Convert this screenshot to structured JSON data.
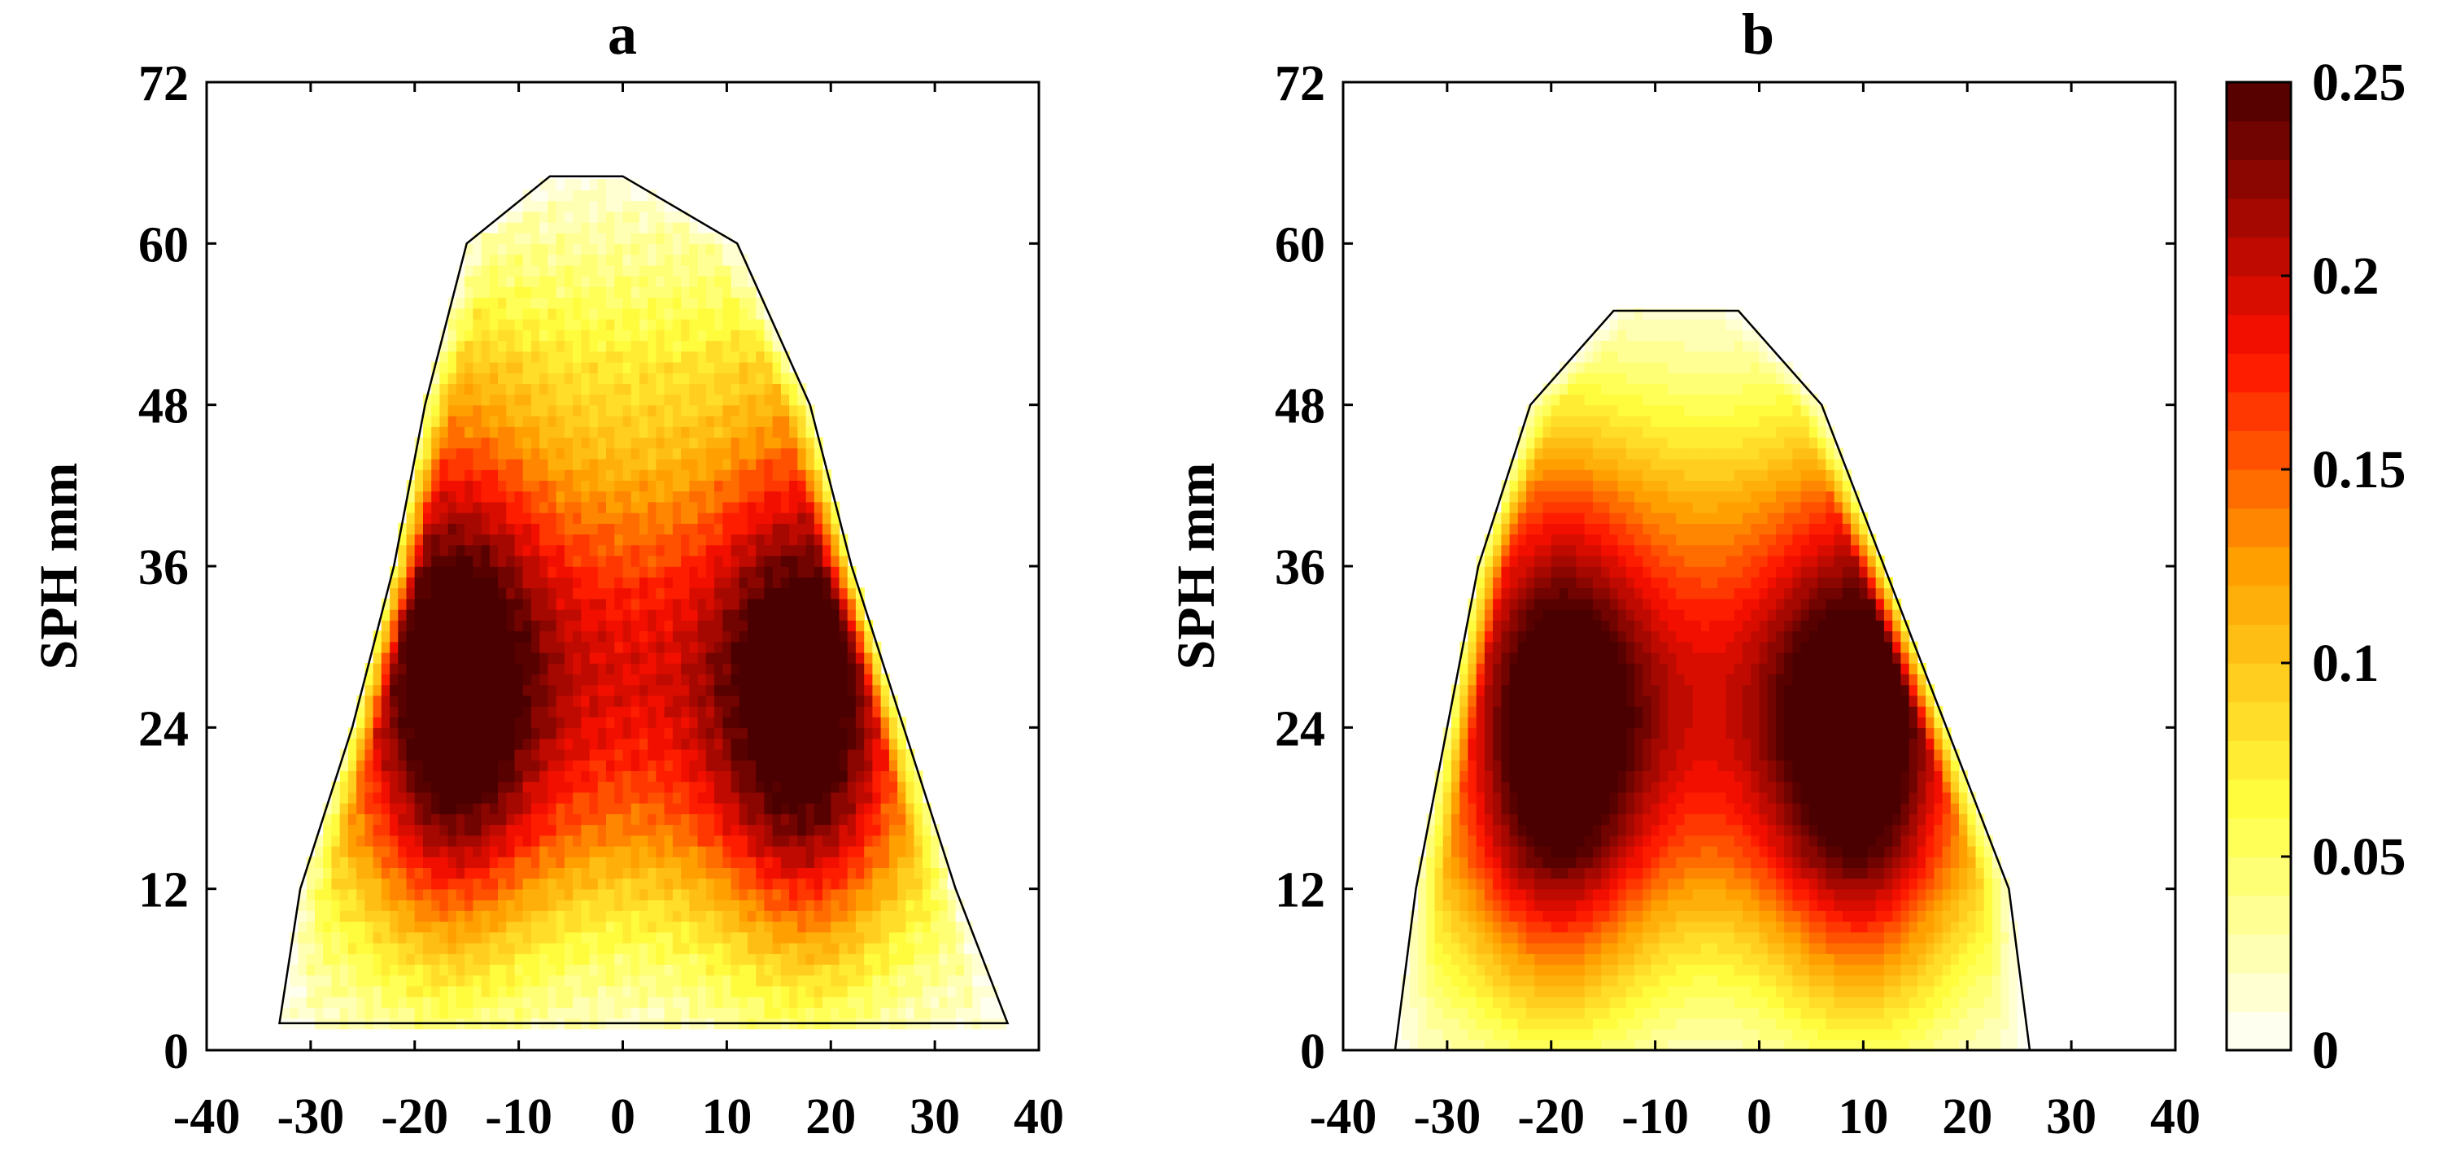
{
  "chart_data": [
    {
      "type": "heatmap",
      "title": "a",
      "xlabel": "",
      "ylabel": "SPH mm",
      "xlim": [
        -40,
        40
      ],
      "ylim": [
        0,
        72
      ],
      "xticks": [
        -40,
        -30,
        -20,
        -10,
        0,
        10,
        20,
        30,
        40
      ],
      "xtick_labels": [
        "-40",
        "-30",
        "-20",
        "-10",
        "0",
        "10",
        "20",
        "30",
        "40"
      ],
      "yticks": [
        0,
        12,
        24,
        36,
        48,
        60,
        72
      ],
      "ytick_labels": [
        "0",
        "12",
        "24",
        "36",
        "48",
        "60",
        "72"
      ],
      "grid": false,
      "description_values": {
        "outline_rows": [
          {
            "y": 2,
            "x_left": -33,
            "x_right": 37
          },
          {
            "y": 12,
            "x_left": -31,
            "x_right": 32
          },
          {
            "y": 24,
            "x_left": -26,
            "x_right": 27
          },
          {
            "y": 36,
            "x_left": -22,
            "x_right": 22
          },
          {
            "y": 48,
            "x_left": -19,
            "x_right": 18
          },
          {
            "y": 60,
            "x_left": -15,
            "x_right": 11
          },
          {
            "y": 65,
            "x_left": -7,
            "x_right": 0
          }
        ],
        "peaks": [
          {
            "x": -17,
            "y": 27,
            "value": 0.25
          },
          {
            "x": 18,
            "y": 26,
            "value": 0.25
          },
          {
            "x": 0,
            "y": 28,
            "value": 0.18
          }
        ]
      }
    },
    {
      "type": "heatmap",
      "title": "b",
      "xlabel": "",
      "ylabel": "SPH mm",
      "xlim": [
        -40,
        40
      ],
      "ylim": [
        0,
        72
      ],
      "xticks": [
        -40,
        -30,
        -20,
        -10,
        0,
        10,
        20,
        30,
        40
      ],
      "xtick_labels": [
        "-40",
        "-30",
        "-20",
        "-10",
        "0",
        "10",
        "20",
        "30",
        "40"
      ],
      "yticks": [
        0,
        12,
        24,
        36,
        48,
        60,
        72
      ],
      "ytick_labels": [
        "0",
        "12",
        "24",
        "36",
        "48",
        "60",
        "72"
      ],
      "grid": false,
      "description_values": {
        "outline_rows": [
          {
            "y": 0,
            "x_left": -35,
            "x_right": 26
          },
          {
            "y": 12,
            "x_left": -33,
            "x_right": 24
          },
          {
            "y": 24,
            "x_left": -30,
            "x_right": 18
          },
          {
            "y": 36,
            "x_left": -27,
            "x_right": 12
          },
          {
            "y": 48,
            "x_left": -22,
            "x_right": 6
          },
          {
            "y": 55,
            "x_left": -14,
            "x_right": -2
          }
        ],
        "peaks": [
          {
            "x": -20,
            "y": 23,
            "value": 0.25
          },
          {
            "x": 10,
            "y": 23,
            "value": 0.25
          },
          {
            "x": -5,
            "y": 26,
            "value": 0.17
          }
        ]
      }
    }
  ],
  "colorbar": {
    "min": 0,
    "max": 0.25,
    "ticks": [
      0,
      0.05,
      0.1,
      0.15,
      0.2,
      0.25
    ],
    "tick_labels": [
      "0",
      "0.05",
      "0.1",
      "0.15",
      "0.2",
      "0.25"
    ],
    "levels": 25,
    "colormap": "hot (reversed)",
    "stops": [
      "#ffffff",
      "#ffff00",
      "#ff8000",
      "#ff0000",
      "#500000"
    ]
  }
}
